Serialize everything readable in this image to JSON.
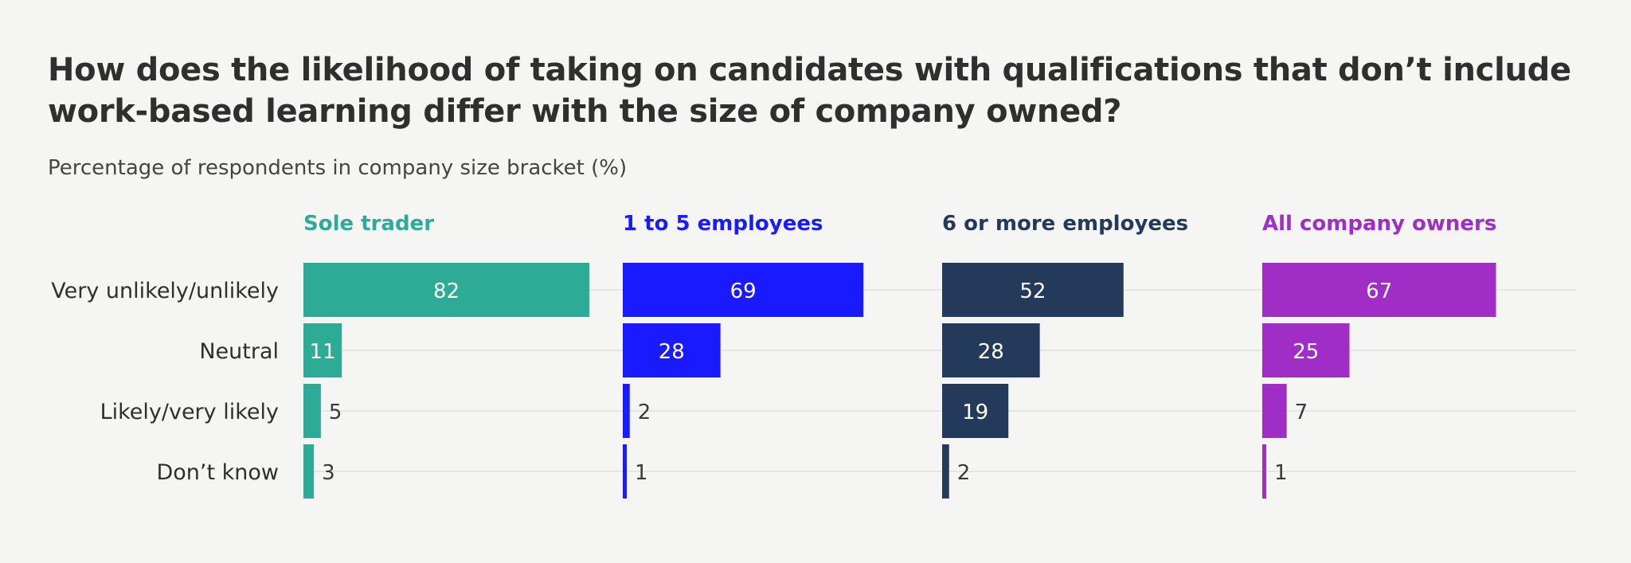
{
  "chart_data": {
    "type": "bar",
    "orientation": "horizontal",
    "title": "How does the likelihood of taking on candidates with qualifications that don’t include work-based learning differ with the size of company owned?",
    "subtitle": "Percentage of respondents in company size bracket (%)",
    "categories": [
      "Very unlikely/unlikely",
      "Neutral",
      "Likely/very likely",
      "Don’t know"
    ],
    "xlim": [
      0,
      100
    ],
    "grid": true,
    "series": [
      {
        "name": "Sole trader",
        "color": "#2dab96",
        "values": [
          82,
          11,
          5,
          3
        ]
      },
      {
        "name": "1 to 5 employees",
        "color": "#1a1aff",
        "values": [
          69,
          28,
          2,
          1
        ]
      },
      {
        "name": "6 or more employees",
        "color": "#243a5a",
        "values": [
          52,
          28,
          19,
          2
        ]
      },
      {
        "name": "All company owners",
        "color": "#a02dc5",
        "values": [
          67,
          25,
          7,
          1
        ]
      }
    ]
  }
}
